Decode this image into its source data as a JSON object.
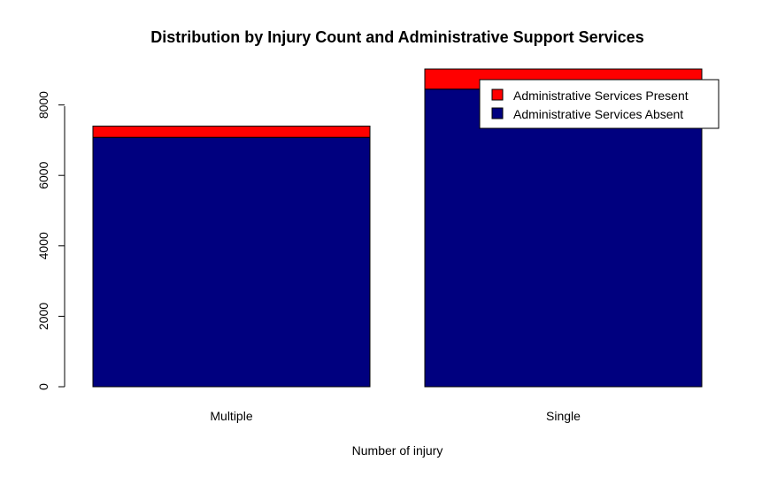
{
  "chart_data": {
    "type": "bar",
    "stacked": true,
    "title": "Distribution by Injury Count and Administrative Support Services",
    "xlabel": "Number of injury",
    "ylabel": "",
    "categories": [
      "Multiple",
      "Single"
    ],
    "series": [
      {
        "name": "Administrative Services Absent",
        "color": "#00007F",
        "values": [
          7080,
          8450
        ]
      },
      {
        "name": "Administrative Services Present",
        "color": "#FF0000",
        "values": [
          320,
          570
        ]
      }
    ],
    "ylim": [
      0,
      9020
    ],
    "yticks": [
      0,
      2000,
      4000,
      6000,
      8000
    ],
    "grid": false,
    "legend_position": "top-right",
    "legend_entries": [
      "Administrative Services Present",
      "Administrative Services Absent"
    ]
  }
}
